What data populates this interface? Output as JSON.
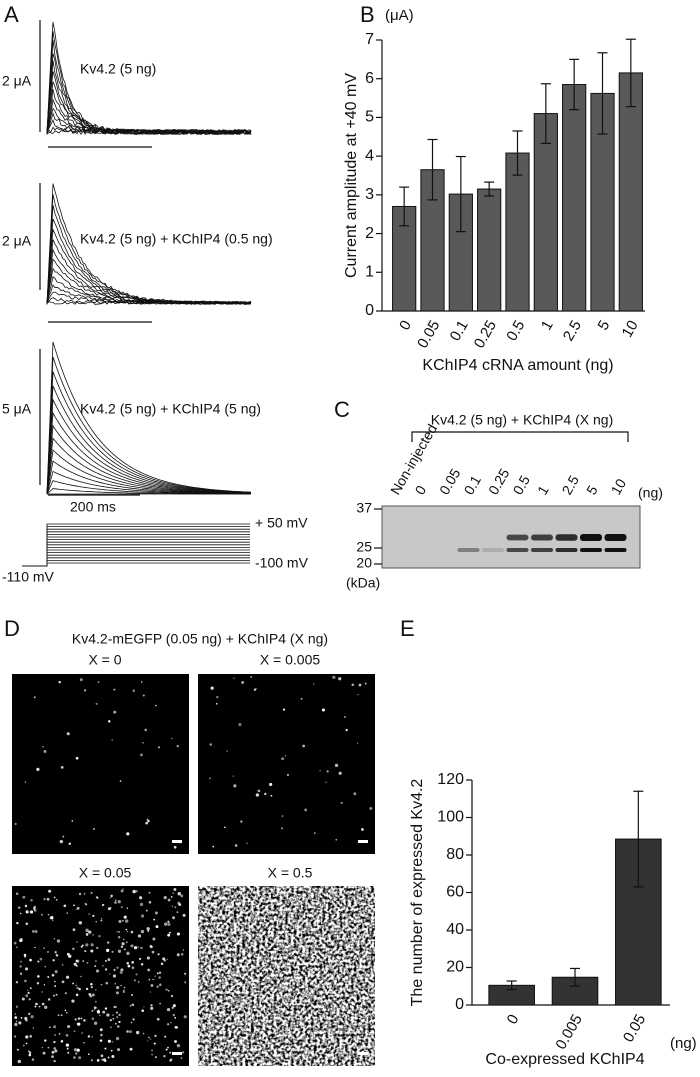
{
  "panels": {
    "a": "A",
    "b": "B",
    "c": "C",
    "d": "D",
    "e": "E"
  },
  "traces": {
    "scale1": "2 μA",
    "label1": "Kv4.2 (5 ng)",
    "scale2": "2 μA",
    "label2": "Kv4.2 (5 ng) + KChIP4 (0.5 ng)",
    "scale3": "5 μA",
    "label3": "Kv4.2 (5 ng) + KChIP4 (5 ng)",
    "time": "200 ms",
    "v_top": "+ 50 mV",
    "v_bottom": "-100 mV",
    "v_hold": "-110 mV"
  },
  "blot": {
    "title": "Kv4.2 (5 ng) + KChIP4 (X ng)",
    "lanes": [
      "Non-injected",
      "0",
      "0.05",
      "0.1",
      "0.25",
      "0.5",
      "1",
      "2.5",
      "5",
      "10"
    ],
    "unit": "(ng)",
    "markers": [
      "37",
      "25",
      "20"
    ],
    "marker_unit": "(kDa)"
  },
  "images": {
    "title": "Kv4.2-mEGFP (0.05 ng) + KChIP4 (X ng)",
    "labels": [
      "X = 0",
      "X = 0.005",
      "X = 0.05",
      "X = 0.5"
    ]
  },
  "chart_data": [
    {
      "type": "bar",
      "unit": "(μA)",
      "y_label": "Current amplitude at +40 mV",
      "x_label": "KChIP4 cRNA amount (ng)",
      "categories": [
        "0",
        "0.05",
        "0.1",
        "0.25",
        "0.5",
        "1",
        "2.5",
        "5",
        "10"
      ],
      "values": [
        2.7,
        3.65,
        3.02,
        3.15,
        4.08,
        5.1,
        5.85,
        5.62,
        6.15
      ],
      "errors": [
        0.5,
        0.78,
        0.97,
        0.18,
        0.57,
        0.77,
        0.65,
        1.05,
        0.87
      ],
      "color": "#595959",
      "ylim": [
        0,
        7
      ],
      "yticks": [
        0,
        1,
        2,
        3,
        4,
        5,
        6,
        7
      ]
    },
    {
      "type": "bar",
      "unit": "(ng)",
      "y_label": "The number of expressed Kv4.2",
      "x_label": "Co-expressed KChIP4",
      "categories": [
        "0",
        "0.005",
        "0.05"
      ],
      "values": [
        10.5,
        14.8,
        88.5
      ],
      "errors": [
        2.3,
        4.7,
        25.5
      ],
      "color": "#333333",
      "ylim": [
        0,
        120
      ],
      "yticks": [
        0,
        20,
        40,
        60,
        80,
        100,
        120
      ]
    }
  ]
}
